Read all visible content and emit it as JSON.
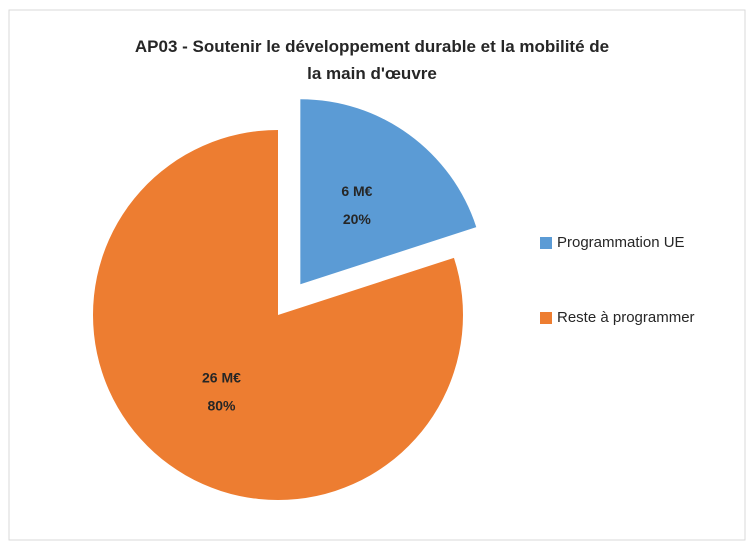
{
  "chart_data": {
    "type": "pie",
    "title": "AP03 - Soutenir le développement durable et la mobilité de la main d'œuvre",
    "categories": [
      "Programmation UE",
      "Reste à programmer"
    ],
    "values": [
      20,
      80
    ],
    "value_labels": [
      "20%",
      "80%"
    ],
    "amount_labels": [
      "6  M€",
      "26  M€"
    ],
    "colors": [
      "#5b9bd5",
      "#ed7d31"
    ],
    "exploded": [
      true,
      false
    ],
    "legend": "right"
  }
}
